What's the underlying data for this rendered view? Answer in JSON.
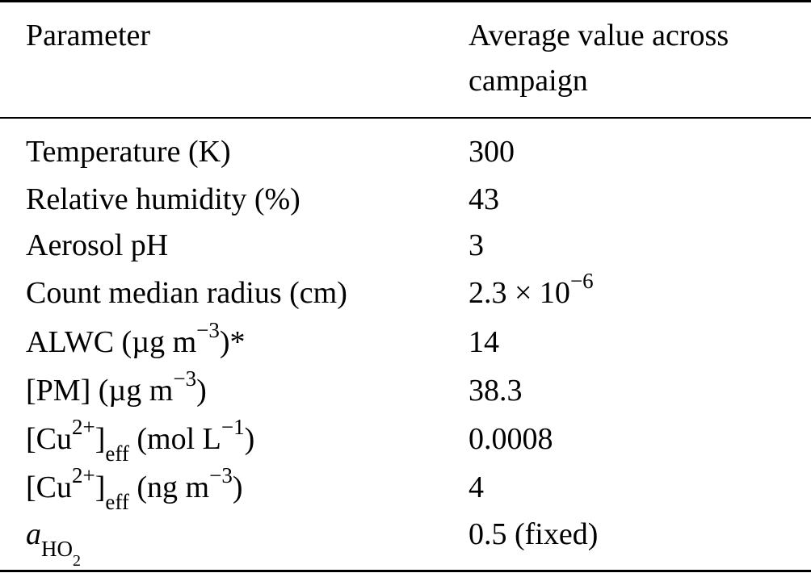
{
  "table": {
    "header": {
      "col1": "Parameter",
      "col2_line1": "Average value across",
      "col2_line2": "campaign"
    },
    "rows": [
      {
        "param": "Temperature (K)",
        "value": "300"
      },
      {
        "param": "Relative humidity (%)",
        "value": "43"
      },
      {
        "param": "Aerosol pH",
        "value": "3"
      },
      {
        "param": "Count median radius (cm)",
        "value_base": "2.3 × 10",
        "value_exp": "−6"
      },
      {
        "param_pre": "ALWC (µg m",
        "param_exp": "−3",
        "param_post": ")*",
        "value": "14"
      },
      {
        "param_pre": "[PM] (µg m",
        "param_exp": "−3",
        "param_post": ")",
        "value": "38.3"
      },
      {
        "param_pre": "[Cu",
        "param_sup1": "2+",
        "param_mid": "]",
        "param_sub": "eff",
        "param_mid2": " (mol L",
        "param_exp": "−1",
        "param_post": ")",
        "value": "0.0008"
      },
      {
        "param_pre": "[Cu",
        "param_sup1": "2+",
        "param_mid": "]",
        "param_sub": "eff",
        "param_mid2": " (ng m",
        "param_exp": "−3",
        "param_post": ")",
        "value": "4"
      },
      {
        "param_sym": "a",
        "param_sub": "HO",
        "param_sub2": "2",
        "value": "0.5 (fixed)"
      }
    ]
  }
}
